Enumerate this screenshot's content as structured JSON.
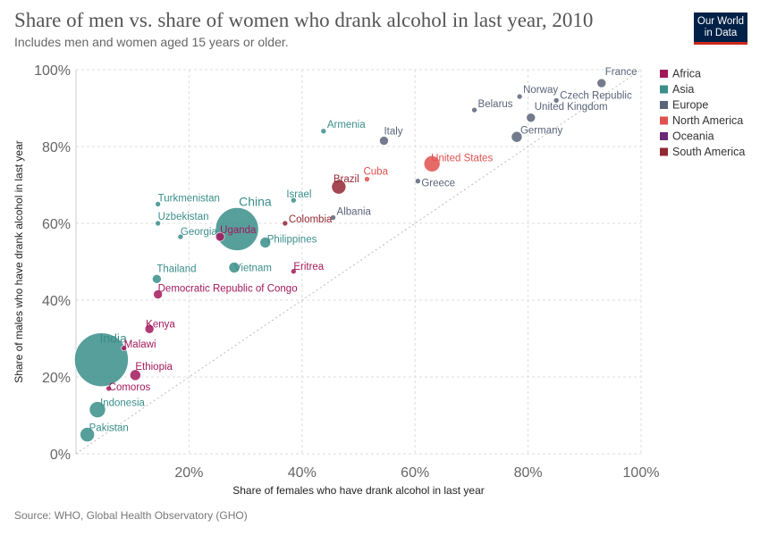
{
  "header": {
    "title": "Share of men vs. share of women who drank alcohol in last year, 2010",
    "subtitle": "Includes men and women aged 15 years or older.",
    "logo_line1": "Our World",
    "logo_line2": "in Data"
  },
  "footer": {
    "source": "Source: WHO, Global Health Observatory (GHO)"
  },
  "colors": {
    "Africa": "#a2185b",
    "Asia": "#3a8e8a",
    "Europe": "#5a6478",
    "North America": "#e0514e",
    "Oceania": "#6b2a77",
    "South America": "#932834"
  },
  "chart_data": {
    "type": "scatter",
    "title": "Share of men vs. share of women who drank alcohol in last year, 2010",
    "subtitle": "Includes men and women aged 15 years or older.",
    "xlabel": "Share of females who have drank alcohol in last year",
    "ylabel": "Share of males who have drank alcohol in last year",
    "xlim": [
      0,
      100
    ],
    "ylim": [
      0,
      100
    ],
    "x_ticks": [
      "20%",
      "40%",
      "60%",
      "80%",
      "100%"
    ],
    "y_ticks": [
      "0%",
      "20%",
      "40%",
      "60%",
      "80%",
      "100%"
    ],
    "grid": true,
    "legend_position": "right",
    "legend": [
      "Africa",
      "Asia",
      "Europe",
      "North America",
      "Oceania",
      "South America"
    ],
    "reference_line": "y = x",
    "labeled_points": [
      {
        "name": "France",
        "region": "Europe",
        "x": 93,
        "y": 96.5
      },
      {
        "name": "Norway",
        "region": "Europe",
        "x": 78.5,
        "y": 93
      },
      {
        "name": "Czech Republic",
        "region": "Europe",
        "x": 85,
        "y": 92
      },
      {
        "name": "Belarus",
        "region": "Europe",
        "x": 70.5,
        "y": 89.5
      },
      {
        "name": "United Kingdom",
        "region": "Europe",
        "x": 80.5,
        "y": 87.5
      },
      {
        "name": "Germany",
        "region": "Europe",
        "x": 78,
        "y": 82.5
      },
      {
        "name": "Armenia",
        "region": "Asia",
        "x": 43.8,
        "y": 84
      },
      {
        "name": "Italy",
        "region": "Europe",
        "x": 54.5,
        "y": 81.5
      },
      {
        "name": "United States",
        "region": "North America",
        "x": 63,
        "y": 75.5
      },
      {
        "name": "Cuba",
        "region": "North America",
        "x": 51.5,
        "y": 71.5
      },
      {
        "name": "Brazil",
        "region": "South America",
        "x": 46.5,
        "y": 69.5
      },
      {
        "name": "Greece",
        "region": "Europe",
        "x": 60.5,
        "y": 71
      },
      {
        "name": "Israel",
        "region": "Asia",
        "x": 38.5,
        "y": 66
      },
      {
        "name": "Turkmenistan",
        "region": "Asia",
        "x": 14.5,
        "y": 65
      },
      {
        "name": "Albania",
        "region": "Europe",
        "x": 45.5,
        "y": 61.5
      },
      {
        "name": "Colombia",
        "region": "South America",
        "x": 37,
        "y": 60
      },
      {
        "name": "Uzbekistan",
        "region": "Asia",
        "x": 14.5,
        "y": 60
      },
      {
        "name": "China",
        "region": "Asia",
        "x": 28.5,
        "y": 58.5
      },
      {
        "name": "Georgia",
        "region": "Asia",
        "x": 18.5,
        "y": 56.5
      },
      {
        "name": "Uganda",
        "region": "Africa",
        "x": 25.5,
        "y": 56.5
      },
      {
        "name": "Philippines",
        "region": "Asia",
        "x": 33.5,
        "y": 55
      },
      {
        "name": "Vietnam",
        "region": "Asia",
        "x": 28,
        "y": 48.5
      },
      {
        "name": "Eritrea",
        "region": "Africa",
        "x": 38.5,
        "y": 47.5
      },
      {
        "name": "Thailand",
        "region": "Asia",
        "x": 14.3,
        "y": 45.5
      },
      {
        "name": "Democratic Republic of Congo",
        "region": "Africa",
        "x": 14.5,
        "y": 41.5
      },
      {
        "name": "Kenya",
        "region": "Africa",
        "x": 13,
        "y": 32.5
      },
      {
        "name": "India",
        "region": "Asia",
        "x": 4.5,
        "y": 24.5
      },
      {
        "name": "Malawi",
        "region": "Africa",
        "x": 8.5,
        "y": 27.5
      },
      {
        "name": "Ethiopia",
        "region": "Africa",
        "x": 10.5,
        "y": 20.5
      },
      {
        "name": "Comoros",
        "region": "Africa",
        "x": 5.8,
        "y": 17
      },
      {
        "name": "Indonesia",
        "region": "Asia",
        "x": 3.8,
        "y": 11.5
      },
      {
        "name": "Pakistan",
        "region": "Asia",
        "x": 2,
        "y": 5
      }
    ]
  }
}
